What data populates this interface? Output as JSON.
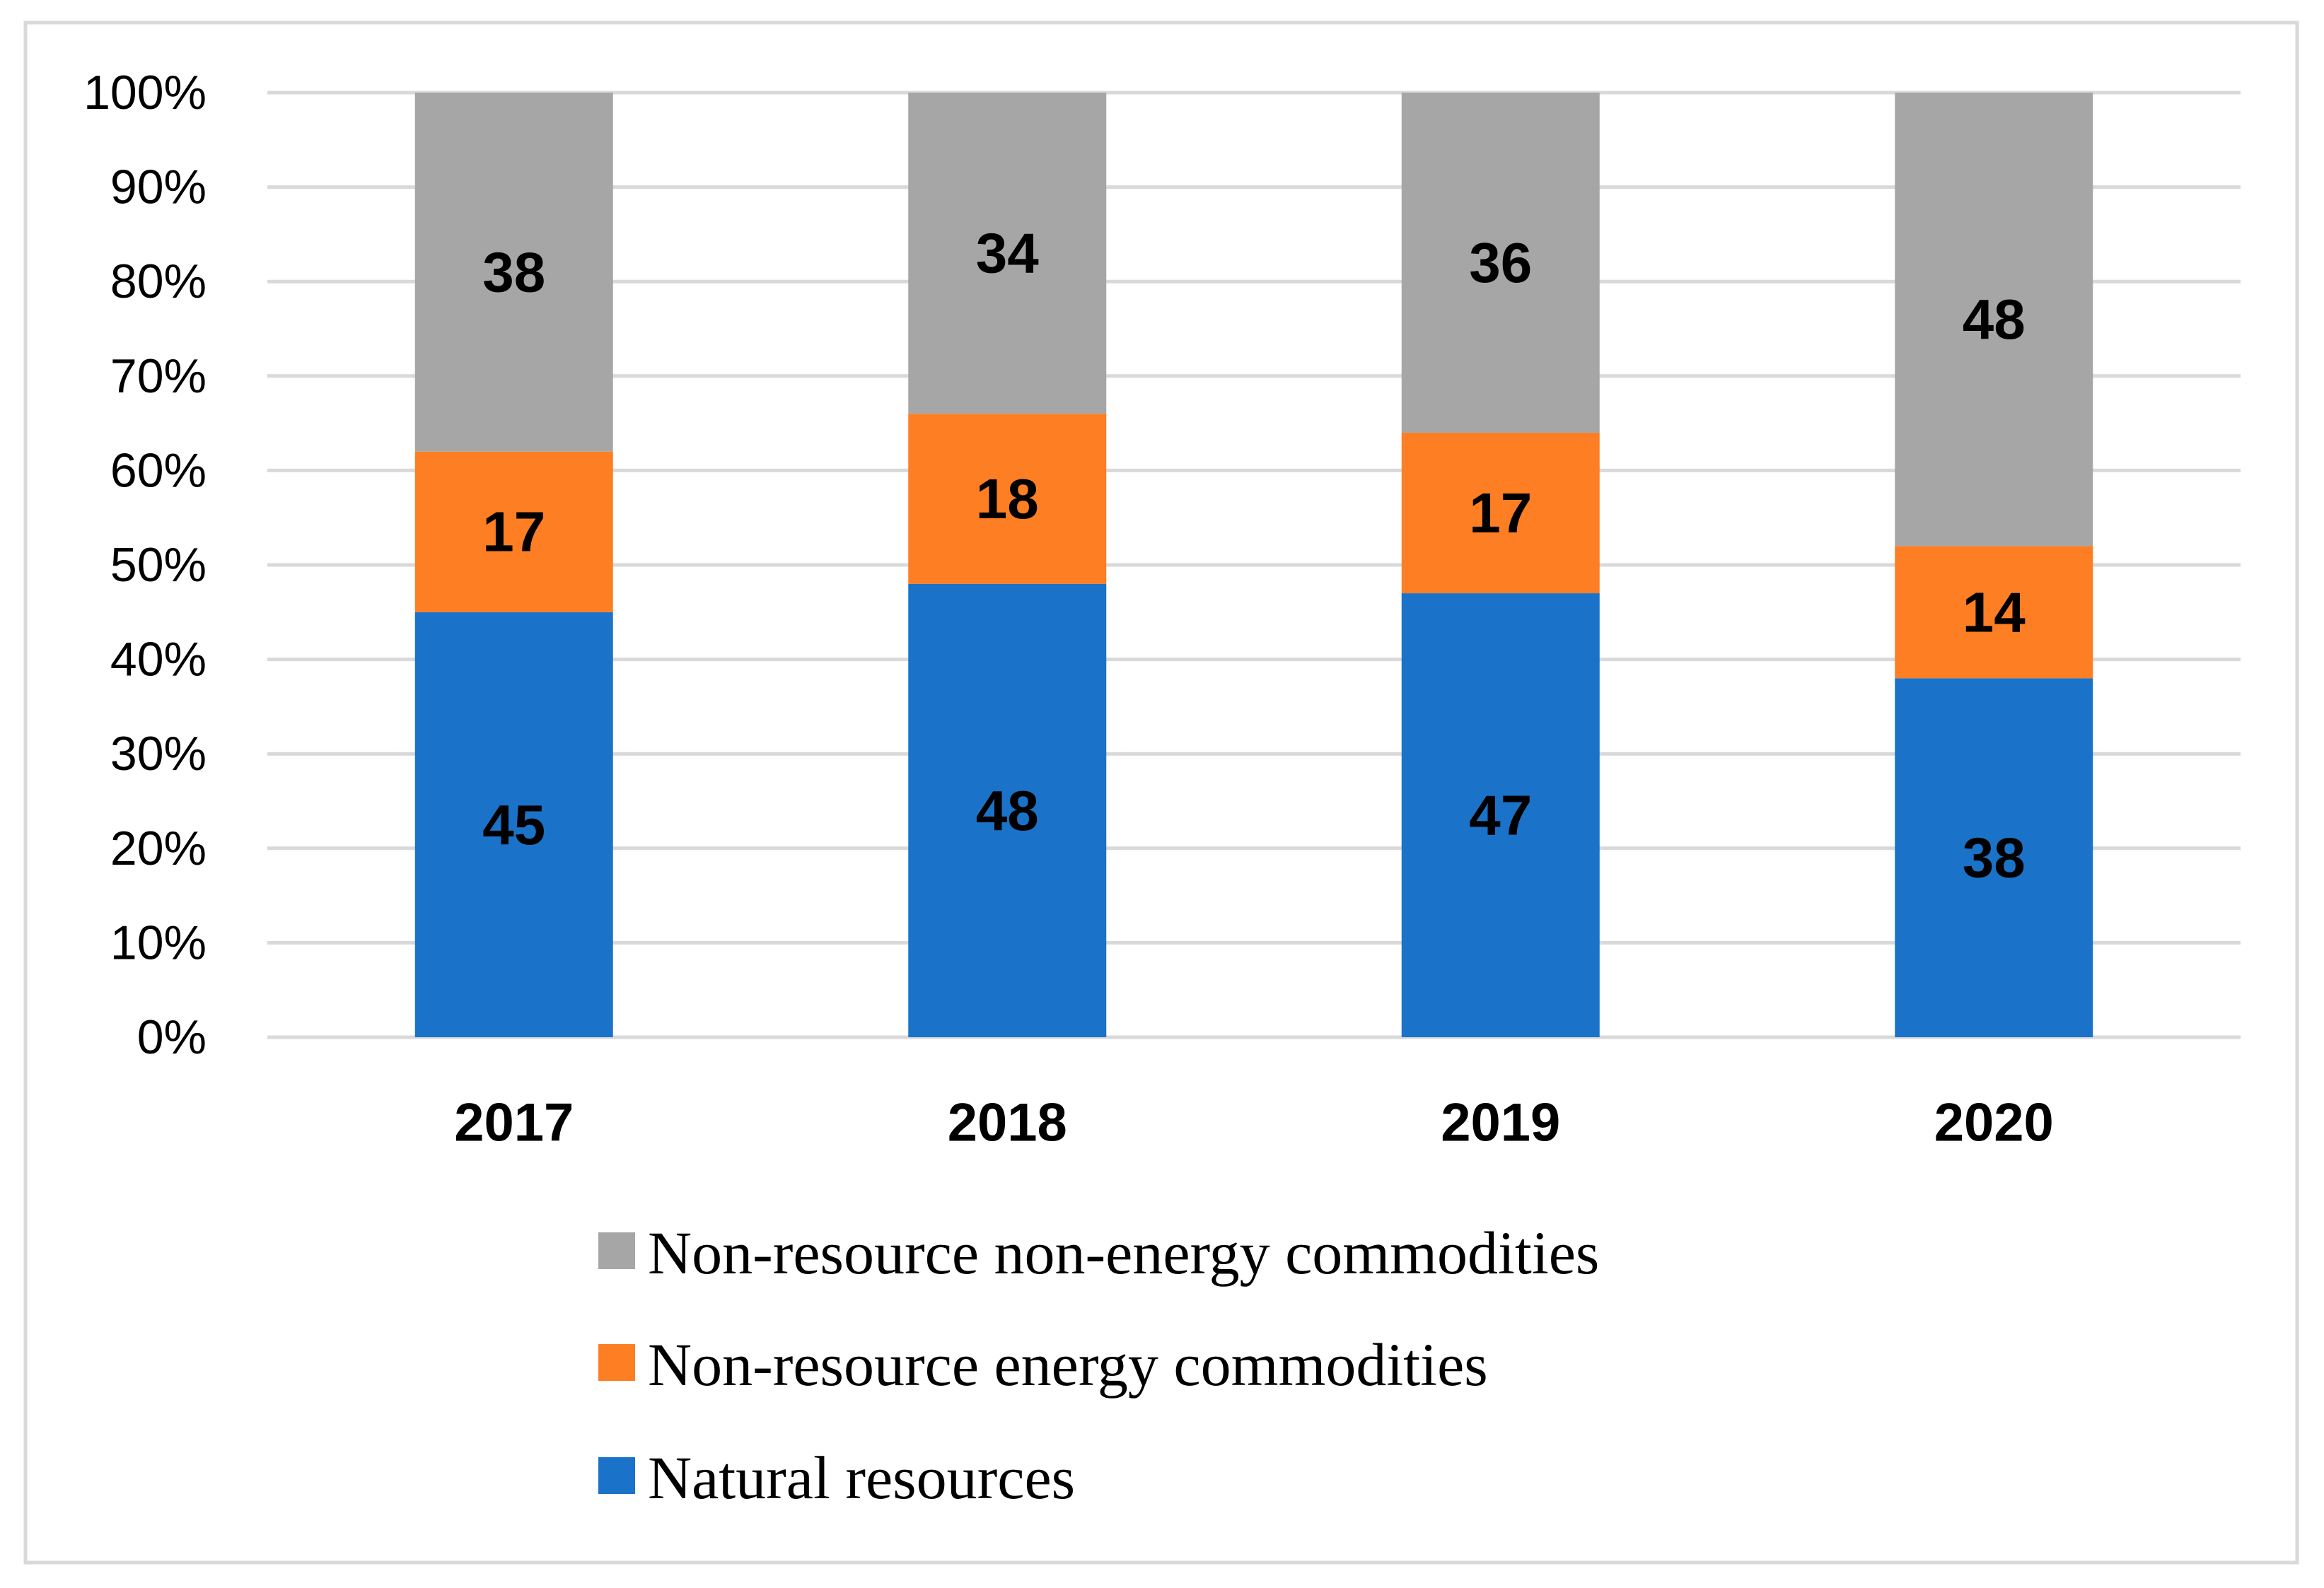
{
  "chart_data": {
    "type": "bar",
    "stacked": true,
    "percent_stacked": true,
    "title": "",
    "xlabel": "",
    "ylabel": "",
    "categories": [
      "2017",
      "2018",
      "2019",
      "2020"
    ],
    "ylim": [
      0,
      100
    ],
    "y_ticks": [
      "0%",
      "10%",
      "20%",
      "30%",
      "40%",
      "50%",
      "60%",
      "70%",
      "80%",
      "90%",
      "100%"
    ],
    "grid": true,
    "legend_position": "bottom",
    "series": [
      {
        "name": "Natural resources",
        "color": "#1a73c8",
        "values": [
          45,
          48,
          47,
          38
        ]
      },
      {
        "name": "Non-resource energy commodities",
        "color": "#fd7e23",
        "values": [
          17,
          18,
          17,
          14
        ]
      },
      {
        "name": "Non-resource non-energy commodities",
        "color": "#a6a6a6",
        "values": [
          38,
          34,
          36,
          48
        ]
      }
    ],
    "legend_order": [
      "Non-resource non-energy commodities",
      "Non-resource energy commodities",
      "Natural resources"
    ]
  },
  "style": {
    "grid_color": "#d9d9d9",
    "frame_color": "#d9d9d9"
  }
}
